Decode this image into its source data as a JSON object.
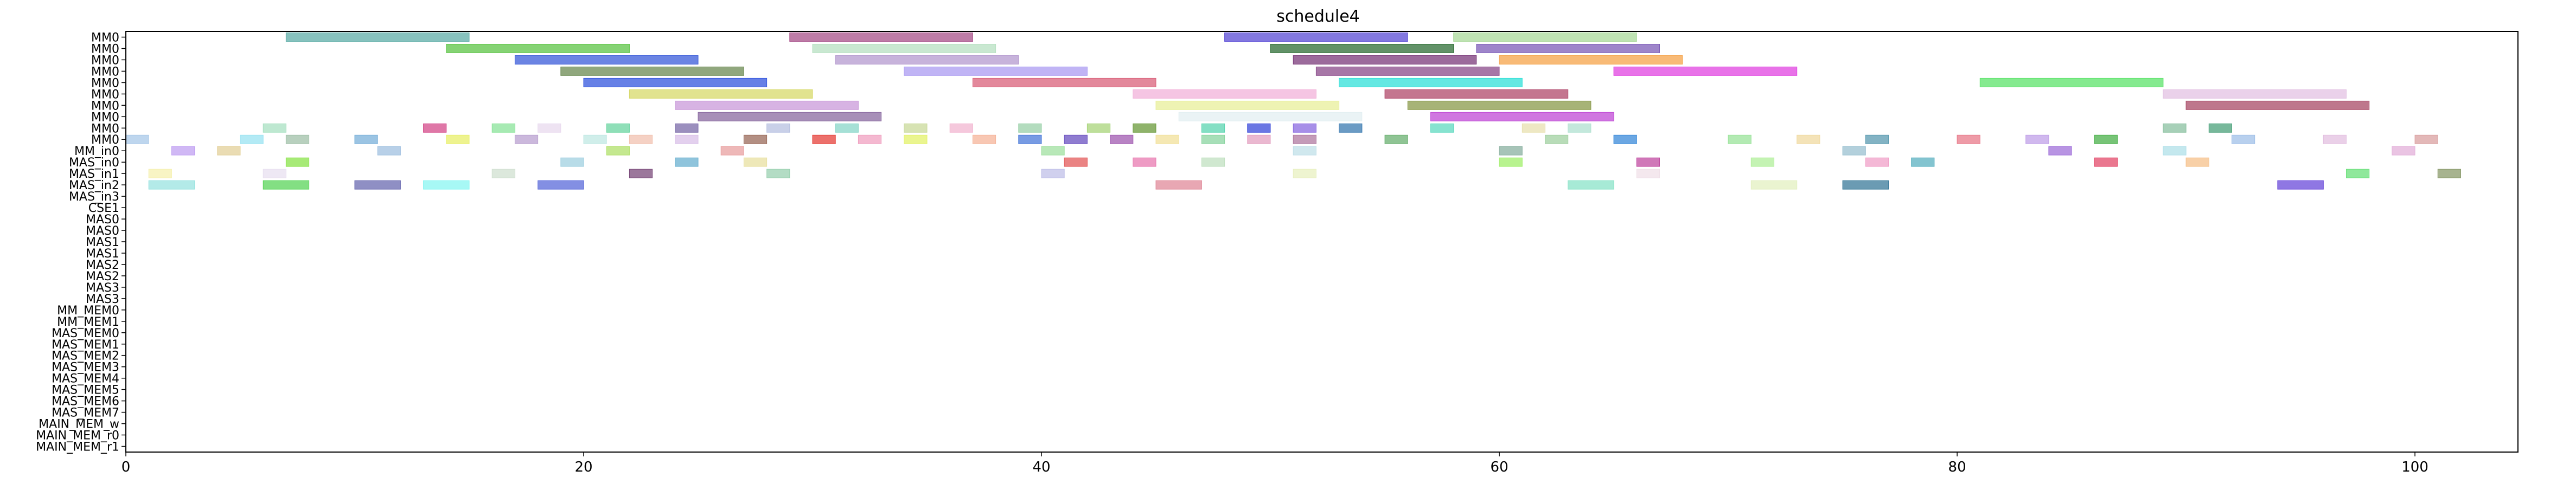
{
  "chart_data": {
    "type": "gantt",
    "title": "schedule4",
    "xlabel": "",
    "ylabel": "",
    "xlim": [
      0,
      104.5
    ],
    "x_ticks": [
      0,
      20,
      40,
      60,
      80,
      100
    ],
    "grid": false,
    "rows": [
      "MM0",
      "MM0",
      "MM0",
      "MM0",
      "MM0",
      "MM0",
      "MM0",
      "MM0",
      "MM0",
      "MM0",
      "MM_in0",
      "MAS_in0",
      "MAS_in1",
      "MAS_in2",
      "MAS_in3",
      "CSE1",
      "MAS0",
      "MAS0",
      "MAS1",
      "MAS1",
      "MAS2",
      "MAS2",
      "MAS3",
      "MAS3",
      "MM_MEM0",
      "MM_MEM1",
      "MAS_MEM0",
      "MAS_MEM1",
      "MAS_MEM2",
      "MAS_MEM3",
      "MAS_MEM4",
      "MAS_MEM5",
      "MAS_MEM6",
      "MAS_MEM7",
      "MAIN_MEM_w",
      "MAIN_MEM_r0",
      "MAIN_MEM_r1"
    ],
    "tasks": [
      {
        "row": 0,
        "start": 7,
        "end": 15,
        "color": "#5fada8"
      },
      {
        "row": 0,
        "start": 29,
        "end": 37,
        "color": "#a8508a"
      },
      {
        "row": 0,
        "start": 48,
        "end": 56,
        "color": "#5a4bd6"
      },
      {
        "row": 0,
        "start": 58,
        "end": 66,
        "color": "#a9d99a"
      },
      {
        "row": 1,
        "start": 14,
        "end": 22,
        "color": "#5cc445"
      },
      {
        "row": 1,
        "start": 30,
        "end": 38,
        "color": "#b7e0c1"
      },
      {
        "row": 1,
        "start": 50,
        "end": 58,
        "color": "#2e6e35"
      },
      {
        "row": 1,
        "start": 59,
        "end": 67,
        "color": "#7e5cb8"
      },
      {
        "row": 2,
        "start": 17,
        "end": 25,
        "color": "#3a5bd9"
      },
      {
        "row": 2,
        "start": 31,
        "end": 39,
        "color": "#b499cf"
      },
      {
        "row": 2,
        "start": 51,
        "end": 59,
        "color": "#7b3a7b"
      },
      {
        "row": 2,
        "start": 60,
        "end": 68,
        "color": "#f5a34a"
      },
      {
        "row": 3,
        "start": 19,
        "end": 27,
        "color": "#6b8a52"
      },
      {
        "row": 3,
        "start": 34,
        "end": 42,
        "color": "#ab9bf2"
      },
      {
        "row": 3,
        "start": 52,
        "end": 60,
        "color": "#8a4a8a"
      },
      {
        "row": 3,
        "start": 65,
        "end": 73,
        "color": "#e043e0"
      },
      {
        "row": 4,
        "start": 20,
        "end": 28,
        "color": "#3355dd"
      },
      {
        "row": 4,
        "start": 37,
        "end": 45,
        "color": "#d9607a"
      },
      {
        "row": 4,
        "start": 53,
        "end": 61,
        "color": "#30e0d8"
      },
      {
        "row": 4,
        "start": 81,
        "end": 89,
        "color": "#5ce36a"
      },
      {
        "row": 5,
        "start": 22,
        "end": 30,
        "color": "#d7d96a"
      },
      {
        "row": 5,
        "start": 44,
        "end": 52,
        "color": "#f2b2d9"
      },
      {
        "row": 5,
        "start": 55,
        "end": 63,
        "color": "#b0486a"
      },
      {
        "row": 5,
        "start": 89,
        "end": 97,
        "color": "#e3c2e3"
      },
      {
        "row": 6,
        "start": 24,
        "end": 32,
        "color": "#c99ad9"
      },
      {
        "row": 6,
        "start": 45,
        "end": 53,
        "color": "#e8ef9a"
      },
      {
        "row": 6,
        "start": 56,
        "end": 64,
        "color": "#8a9a4a"
      },
      {
        "row": 6,
        "start": 90,
        "end": 98,
        "color": "#a84a66"
      },
      {
        "row": 7,
        "start": 25,
        "end": 33,
        "color": "#8a6aa0"
      },
      {
        "row": 7,
        "start": 46,
        "end": 54,
        "color": "#e3eff2"
      },
      {
        "row": 7,
        "start": 57,
        "end": 65,
        "color": "#c04ad6"
      },
      {
        "row": 8,
        "start": 6,
        "end": 7,
        "color": "#a8e0c2"
      },
      {
        "row": 8,
        "start": 13,
        "end": 14,
        "color": "#d44a8a"
      },
      {
        "row": 8,
        "start": 16,
        "end": 17,
        "color": "#8ae39a"
      },
      {
        "row": 8,
        "start": 18,
        "end": 19,
        "color": "#e8d9ee"
      },
      {
        "row": 8,
        "start": 21,
        "end": 22,
        "color": "#6ad4a0"
      },
      {
        "row": 8,
        "start": 24,
        "end": 25,
        "color": "#7a6aa8"
      },
      {
        "row": 8,
        "start": 28,
        "end": 29,
        "color": "#b7c0e0"
      },
      {
        "row": 8,
        "start": 31,
        "end": 32,
        "color": "#88d6c8"
      },
      {
        "row": 8,
        "start": 34,
        "end": 35,
        "color": "#c9d99a"
      },
      {
        "row": 8,
        "start": 36,
        "end": 37,
        "color": "#f2b6d0"
      },
      {
        "row": 8,
        "start": 39,
        "end": 40,
        "color": "#9ad0a8"
      },
      {
        "row": 8,
        "start": 42,
        "end": 43,
        "color": "#a8d47a"
      },
      {
        "row": 8,
        "start": 44,
        "end": 45,
        "color": "#6a9a3a"
      },
      {
        "row": 8,
        "start": 47,
        "end": 48,
        "color": "#5ad4b0"
      },
      {
        "row": 8,
        "start": 49,
        "end": 50,
        "color": "#3a4ad9"
      },
      {
        "row": 8,
        "start": 51,
        "end": 52,
        "color": "#8a6ae0"
      },
      {
        "row": 8,
        "start": 53,
        "end": 54,
        "color": "#3a7ab0"
      },
      {
        "row": 8,
        "start": 57,
        "end": 58,
        "color": "#5fd9c0"
      },
      {
        "row": 8,
        "start": 61,
        "end": 62,
        "color": "#e8e0b0"
      },
      {
        "row": 8,
        "start": 63,
        "end": 64,
        "color": "#b0e0d0"
      },
      {
        "row": 8,
        "start": 89,
        "end": 90,
        "color": "#8ac0a0"
      },
      {
        "row": 8,
        "start": 91,
        "end": 92,
        "color": "#4aa07a"
      },
      {
        "row": 9,
        "start": 0,
        "end": 1,
        "color": "#a8c8e8"
      },
      {
        "row": 9,
        "start": 5,
        "end": 6,
        "color": "#9ae3f2"
      },
      {
        "row": 9,
        "start": 7,
        "end": 8,
        "color": "#a0c0a8"
      },
      {
        "row": 9,
        "start": 10,
        "end": 11,
        "color": "#7ab0d9"
      },
      {
        "row": 9,
        "start": 14,
        "end": 15,
        "color": "#e8ef6a"
      },
      {
        "row": 9,
        "start": 17,
        "end": 18,
        "color": "#b9a0d0"
      },
      {
        "row": 9,
        "start": 20,
        "end": 21,
        "color": "#c0e8e3"
      },
      {
        "row": 9,
        "start": 22,
        "end": 23,
        "color": "#f2c2b0"
      },
      {
        "row": 9,
        "start": 24,
        "end": 25,
        "color": "#d9c0e8"
      },
      {
        "row": 9,
        "start": 27,
        "end": 28,
        "color": "#9a6a5a"
      },
      {
        "row": 9,
        "start": 30,
        "end": 31,
        "color": "#e6403a"
      },
      {
        "row": 9,
        "start": 32,
        "end": 33,
        "color": "#f0a0c0"
      },
      {
        "row": 9,
        "start": 34,
        "end": 35,
        "color": "#e3f26a"
      },
      {
        "row": 9,
        "start": 37,
        "end": 38,
        "color": "#f5b49a"
      },
      {
        "row": 9,
        "start": 39,
        "end": 40,
        "color": "#4a7ad9"
      },
      {
        "row": 9,
        "start": 41,
        "end": 42,
        "color": "#6a50c0"
      },
      {
        "row": 9,
        "start": 43,
        "end": 44,
        "color": "#a05ab0"
      },
      {
        "row": 9,
        "start": 45,
        "end": 46,
        "color": "#f2e09a"
      },
      {
        "row": 9,
        "start": 47,
        "end": 48,
        "color": "#8ad4a0"
      },
      {
        "row": 9,
        "start": 49,
        "end": 50,
        "color": "#e3a0c0"
      },
      {
        "row": 9,
        "start": 51,
        "end": 52,
        "color": "#b07aa0"
      },
      {
        "row": 9,
        "start": 55,
        "end": 56,
        "color": "#6ab070"
      },
      {
        "row": 9,
        "start": 62,
        "end": 63,
        "color": "#a0d0a0"
      },
      {
        "row": 9,
        "start": 65,
        "end": 66,
        "color": "#3a8ad9"
      },
      {
        "row": 9,
        "start": 70,
        "end": 71,
        "color": "#9ae39a"
      },
      {
        "row": 9,
        "start": 73,
        "end": 74,
        "color": "#f0d9a0"
      },
      {
        "row": 9,
        "start": 76,
        "end": 77,
        "color": "#5a9ab0"
      },
      {
        "row": 9,
        "start": 80,
        "end": 81,
        "color": "#e87a8a"
      },
      {
        "row": 9,
        "start": 83,
        "end": 84,
        "color": "#c0a0e8"
      },
      {
        "row": 9,
        "start": 86,
        "end": 87,
        "color": "#4ab04a"
      },
      {
        "row": 9,
        "start": 92,
        "end": 93,
        "color": "#a0c0e8"
      },
      {
        "row": 9,
        "start": 96,
        "end": 97,
        "color": "#e3c0e0"
      },
      {
        "row": 9,
        "start": 100,
        "end": 101,
        "color": "#d9a0a0"
      },
      {
        "row": 10,
        "start": 2,
        "end": 3,
        "color": "#c0a0f2"
      },
      {
        "row": 10,
        "start": 4,
        "end": 5,
        "color": "#e3d09a"
      },
      {
        "row": 10,
        "start": 11,
        "end": 12,
        "color": "#a0c0e0"
      },
      {
        "row": 10,
        "start": 21,
        "end": 22,
        "color": "#b0e06a"
      },
      {
        "row": 10,
        "start": 26,
        "end": 27,
        "color": "#e8a0a0"
      },
      {
        "row": 10,
        "start": 40,
        "end": 41,
        "color": "#a0e0a0"
      },
      {
        "row": 10,
        "start": 51,
        "end": 52,
        "color": "#c0e0e8"
      },
      {
        "row": 10,
        "start": 60,
        "end": 61,
        "color": "#8ab0a0"
      },
      {
        "row": 10,
        "start": 75,
        "end": 76,
        "color": "#9ac0d0"
      },
      {
        "row": 10,
        "start": 84,
        "end": 85,
        "color": "#a070d9"
      },
      {
        "row": 10,
        "start": 89,
        "end": 90,
        "color": "#b0e0e8"
      },
      {
        "row": 10,
        "start": 99,
        "end": 100,
        "color": "#e3b0d9"
      },
      {
        "row": 11,
        "start": 7,
        "end": 8,
        "color": "#8ae34a"
      },
      {
        "row": 11,
        "start": 19,
        "end": 20,
        "color": "#a0d0e0"
      },
      {
        "row": 11,
        "start": 24,
        "end": 25,
        "color": "#6ab0d0"
      },
      {
        "row": 11,
        "start": 27,
        "end": 28,
        "color": "#e8e0a0"
      },
      {
        "row": 11,
        "start": 41,
        "end": 42,
        "color": "#e35a5a"
      },
      {
        "row": 11,
        "start": 44,
        "end": 45,
        "color": "#e87ab0"
      },
      {
        "row": 11,
        "start": 47,
        "end": 48,
        "color": "#c0e0c0"
      },
      {
        "row": 11,
        "start": 60,
        "end": 61,
        "color": "#a0ef6a"
      },
      {
        "row": 11,
        "start": 66,
        "end": 67,
        "color": "#c04aa0"
      },
      {
        "row": 11,
        "start": 71,
        "end": 72,
        "color": "#b0ef9a"
      },
      {
        "row": 11,
        "start": 76,
        "end": 77,
        "color": "#f0a0c8"
      },
      {
        "row": 11,
        "start": 78,
        "end": 79,
        "color": "#5ab0c0"
      },
      {
        "row": 11,
        "start": 86,
        "end": 87,
        "color": "#e34a6a"
      },
      {
        "row": 11,
        "start": 90,
        "end": 91,
        "color": "#f5c08a"
      },
      {
        "row": 12,
        "start": 1,
        "end": 2,
        "color": "#f5f0b0"
      },
      {
        "row": 12,
        "start": 6,
        "end": 7,
        "color": "#e8e0f0"
      },
      {
        "row": 12,
        "start": 16,
        "end": 17,
        "color": "#d0e0d0"
      },
      {
        "row": 12,
        "start": 22,
        "end": 23,
        "color": "#7a4a7a"
      },
      {
        "row": 12,
        "start": 28,
        "end": 29,
        "color": "#9ad0b0"
      },
      {
        "row": 12,
        "start": 40,
        "end": 41,
        "color": "#c0c0e8"
      },
      {
        "row": 12,
        "start": 51,
        "end": 52,
        "color": "#e8f0c0"
      },
      {
        "row": 12,
        "start": 66,
        "end": 67,
        "color": "#f0e0e8"
      },
      {
        "row": 12,
        "start": 97,
        "end": 98,
        "color": "#6ae07a"
      },
      {
        "row": 12,
        "start": 101,
        "end": 102,
        "color": "#8a9a6a"
      },
      {
        "row": 13,
        "start": 1,
        "end": 3,
        "color": "#9ae3e0"
      },
      {
        "row": 13,
        "start": 6,
        "end": 8,
        "color": "#5ad45a"
      },
      {
        "row": 13,
        "start": 10,
        "end": 12,
        "color": "#6a6ab0"
      },
      {
        "row": 13,
        "start": 13,
        "end": 15,
        "color": "#8af5f2"
      },
      {
        "row": 13,
        "start": 18,
        "end": 20,
        "color": "#5a6ad9"
      },
      {
        "row": 13,
        "start": 45,
        "end": 47,
        "color": "#e08a9a"
      },
      {
        "row": 13,
        "start": 63,
        "end": 65,
        "color": "#8ae3c8"
      },
      {
        "row": 13,
        "start": 71,
        "end": 73,
        "color": "#e3f0c0"
      },
      {
        "row": 13,
        "start": 75,
        "end": 77,
        "color": "#3a7a9a"
      },
      {
        "row": 13,
        "start": 94,
        "end": 96,
        "color": "#6a4ad9"
      }
    ]
  }
}
